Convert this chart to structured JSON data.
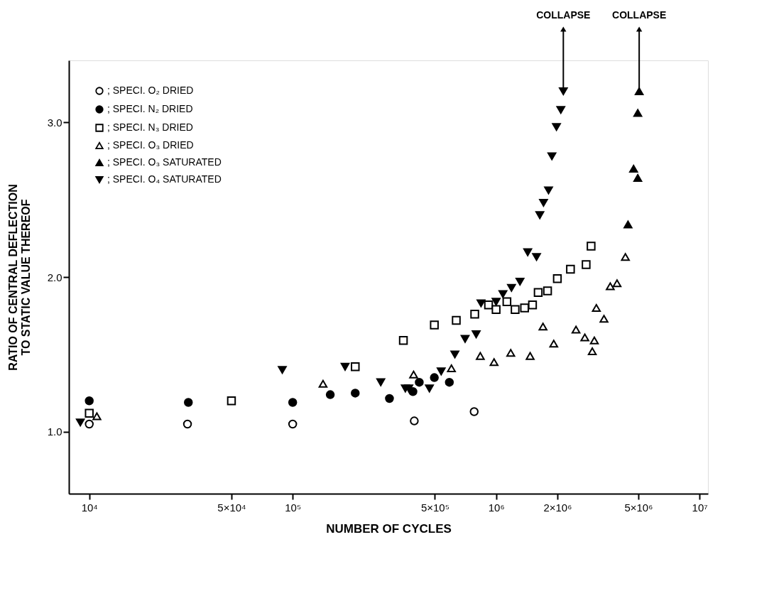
{
  "chart_data": {
    "type": "scatter",
    "xlabel": "NUMBER OF CYCLES",
    "ylabel": "RATIO OF CENTRAL DEFLECTION\nTO STATIC VALUE THEREOF",
    "log": "x",
    "grid": false,
    "legend": "top left",
    "xlim": [
      7940,
      11000000
    ],
    "ylim": [
      0.6,
      3.4
    ],
    "xticks": [
      {
        "value": 10000,
        "label": "10⁴"
      },
      {
        "value": 50000,
        "label": "5×10⁴"
      },
      {
        "value": 100000,
        "label": "10⁵"
      },
      {
        "value": 500000,
        "label": "5×10⁵"
      },
      {
        "value": 1000000,
        "label": "10⁶"
      },
      {
        "value": 2000000,
        "label": "2×10⁶"
      },
      {
        "value": 5000000,
        "label": "5×10⁶"
      },
      {
        "value": 10000000,
        "label": "10⁷"
      }
    ],
    "yticks": [
      {
        "value": 1,
        "label": "1.0"
      },
      {
        "value": 2,
        "label": "2.0"
      },
      {
        "value": 3,
        "label": "3.0"
      }
    ],
    "annotations": [
      {
        "text": "COLLAPSE",
        "x": 2140000,
        "y": 3.2
      },
      {
        "text": "COLLAPSE",
        "x": 5050000,
        "y": 3.2
      }
    ],
    "series": [
      {
        "name": "; SPECI. O₂ DRIED",
        "color": "#ffffff",
        "marker": "circle",
        "x": [
          10000,
          30400,
          100000,
          396000,
          780000
        ],
        "values": [
          1.05,
          1.05,
          1.05,
          1.07,
          1.13
        ]
      },
      {
        "name": "; SPECI. N₂ DRIED",
        "color": "#000000",
        "marker": "circle",
        "x": [
          10000,
          30700,
          100000,
          153000,
          203000,
          299000,
          390000,
          419000,
          497000,
          589000
        ],
        "values": [
          1.2,
          1.19,
          1.19,
          1.24,
          1.25,
          1.215,
          1.26,
          1.32,
          1.35,
          1.32
        ]
      },
      {
        "name": "; SPECI. N₃ DRIED",
        "color": "#ffffff",
        "marker": "square",
        "x": [
          10000,
          50000,
          203000,
          350000,
          497000,
          637000,
          785000,
          918000,
          1000000,
          1130000,
          1240000,
          1380000,
          1510000,
          1610000,
          1790000,
          2000000,
          2320000,
          2770000,
          2930000
        ],
        "values": [
          1.12,
          1.2,
          1.42,
          1.59,
          1.69,
          1.72,
          1.76,
          1.82,
          1.79,
          1.84,
          1.79,
          1.8,
          1.82,
          1.9,
          1.91,
          1.99,
          2.05,
          2.08,
          2.2
        ]
      },
      {
        "name": "; SPECI. O₃ DRIED",
        "color": "#ffffff",
        "marker": "triangle",
        "x": [
          10900,
          141000,
          393000,
          603000,
          836000,
          977000,
          1180000,
          1470000,
          1700000,
          1920000,
          2470000,
          2730000,
          3040000,
          2970000,
          3110000,
          3390000,
          3640000,
          3930000,
          4320000
        ],
        "values": [
          1.1,
          1.31,
          1.37,
          1.41,
          1.49,
          1.45,
          1.51,
          1.49,
          1.68,
          1.57,
          1.66,
          1.61,
          1.59,
          1.52,
          1.8,
          1.73,
          1.94,
          1.96,
          2.13
        ]
      },
      {
        "name": "; SPECI. O₃ SATURATED",
        "color": "#000000",
        "marker": "triangle",
        "x": [
          4450000,
          4740000,
          4970000,
          4970000,
          5050000
        ],
        "values": [
          2.34,
          2.7,
          2.64,
          3.06,
          3.2
        ]
      },
      {
        "name": "; SPECI. O₄ SATURATED",
        "color": "#000000",
        "marker": "triangle-down",
        "x": [
          9040,
          88900,
          181000,
          271000,
          358000,
          372000,
          470000,
          537000,
          627000,
          704000,
          798000,
          843000,
          1000000,
          1080000,
          1190000,
          1310000,
          1430000,
          1580000,
          1640000,
          1710000,
          1810000,
          1880000,
          1980000,
          2080000,
          2140000
        ],
        "values": [
          1.06,
          1.4,
          1.42,
          1.32,
          1.28,
          1.28,
          1.28,
          1.39,
          1.5,
          1.6,
          1.63,
          1.83,
          1.84,
          1.89,
          1.93,
          1.97,
          2.16,
          2.13,
          2.4,
          2.48,
          2.56,
          2.78,
          2.97,
          3.08,
          3.2
        ]
      }
    ]
  }
}
